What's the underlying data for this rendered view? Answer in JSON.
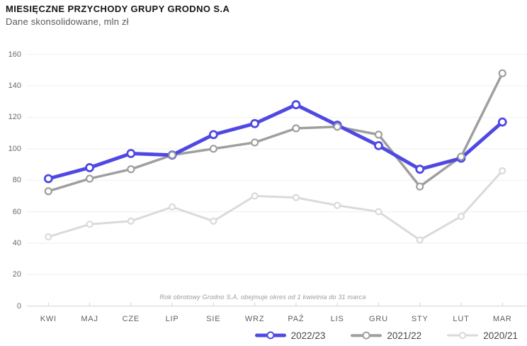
{
  "header": {
    "title": "MIESIĘCZNE PRZYCHODY GRUPY GRODNO S.A",
    "subtitle": "Dane skonsolidowane, mln zł"
  },
  "chart_data": {
    "type": "line",
    "title": "MIESIĘCZNE PRZYCHODY GRUPY GRODNO S.A",
    "subtitle": "Dane skonsolidowane, mln zł",
    "categories": [
      "KWI",
      "MAJ",
      "CZE",
      "LIP",
      "SIE",
      "WRZ",
      "PAŹ",
      "LIS",
      "GRU",
      "STY",
      "LUT",
      "MAR"
    ],
    "series": [
      {
        "name": "2022/23",
        "color": "#4f49e2",
        "values": [
          81,
          88,
          97,
          96,
          109,
          116,
          128,
          115,
          102,
          87,
          94,
          117
        ]
      },
      {
        "name": "2021/22",
        "color": "#9f9f9f",
        "values": [
          73,
          81,
          87,
          96,
          100,
          104,
          113,
          114,
          109,
          76,
          95,
          148
        ]
      },
      {
        "name": "2020/21",
        "color": "#dadada",
        "values": [
          44,
          52,
          54,
          63,
          54,
          70,
          69,
          64,
          60,
          42,
          57,
          86
        ]
      }
    ],
    "ylim": [
      0,
      160
    ],
    "yticks": [
      0,
      20,
      40,
      60,
      80,
      100,
      120,
      140,
      160
    ],
    "grid": "horizontal",
    "legend_position": "bottom-right",
    "annotation": "Rok obrotowy Grodno S.A. obejmuje okres od 1 kwietnia do 31 marca",
    "colors": {
      "grid": "#efefef",
      "axis": "#d4d4d4",
      "accent": "#4f49e2"
    }
  }
}
